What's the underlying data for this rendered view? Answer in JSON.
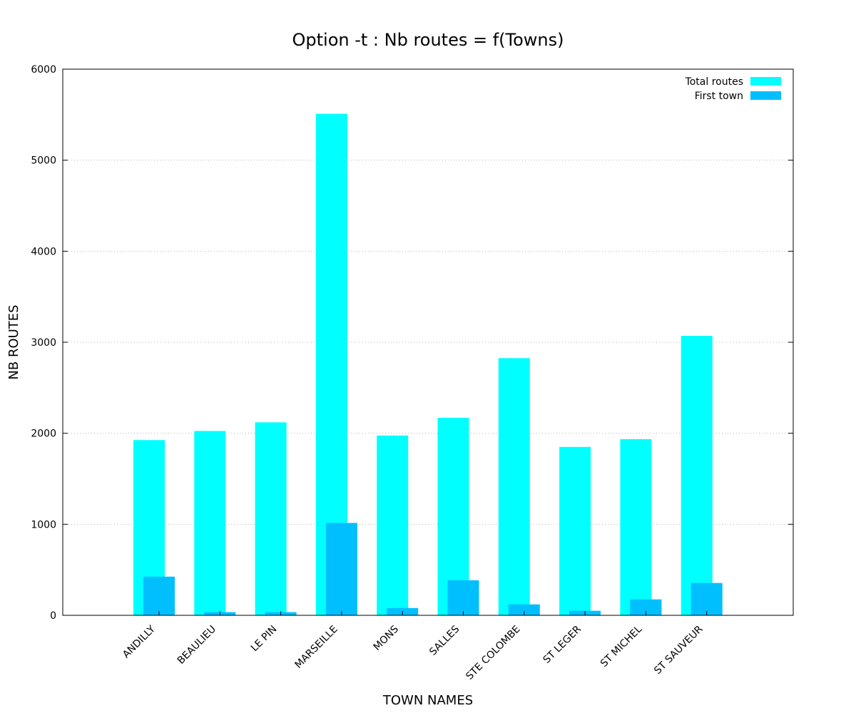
{
  "chart_data": {
    "type": "bar",
    "title": "Option -t : Nb routes = f(Towns)",
    "xlabel": "TOWN NAMES",
    "ylabel": "NB ROUTES",
    "ylim": [
      0,
      6000
    ],
    "yticks": [
      0,
      1000,
      2000,
      3000,
      4000,
      5000,
      6000
    ],
    "grid": true,
    "legend_position": "top-right",
    "categories": [
      "ANDILLY",
      "BEAULIEU",
      "LE PIN",
      "MARSEILLE",
      "MONS",
      "SALLES",
      "STE COLOMBE",
      "ST LEGER",
      "ST MICHEL",
      "ST SAUVEUR"
    ],
    "series": [
      {
        "name": "Total routes",
        "color": "#00ffff",
        "values": [
          1925,
          2025,
          2120,
          5510,
          1975,
          2170,
          2825,
          1850,
          1935,
          3070
        ]
      },
      {
        "name": "First town",
        "color": "#00bfff",
        "values": [
          425,
          35,
          35,
          1015,
          80,
          385,
          120,
          50,
          175,
          355
        ]
      }
    ]
  }
}
